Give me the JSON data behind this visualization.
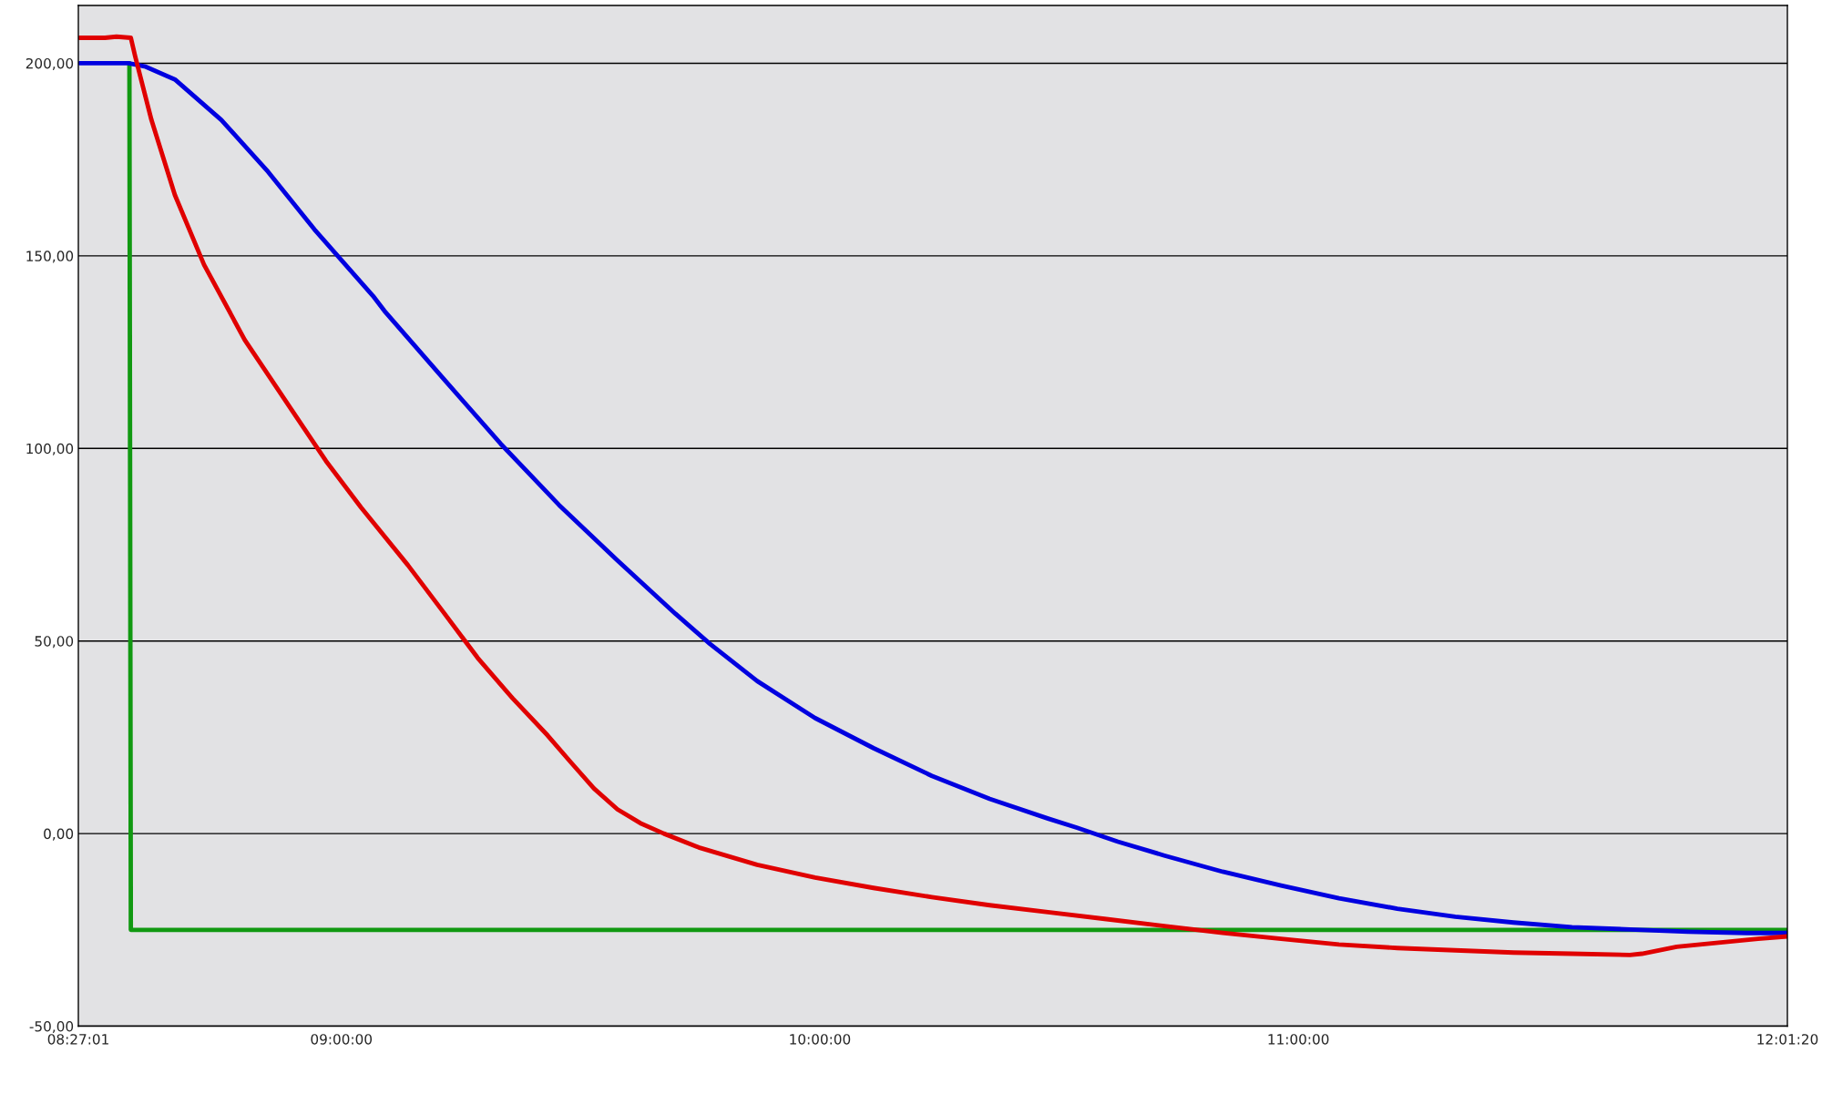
{
  "chart_data": {
    "type": "line",
    "xlim": [
      8.45028,
      12.02222
    ],
    "ylim": [
      -50,
      215
    ],
    "xticks": [
      {
        "value": 8.45028,
        "label": "08:27:01"
      },
      {
        "value": 9,
        "label": "09:00:00"
      },
      {
        "value": 10,
        "label": "10:00:00"
      },
      {
        "value": 11,
        "label": "11:00:00"
      },
      {
        "value": 12.02222,
        "label": "12:01:20"
      }
    ],
    "yticks": [
      {
        "value": -50,
        "label": "-50,00"
      },
      {
        "value": 0,
        "label": "0,00"
      },
      {
        "value": 50,
        "label": "50,00"
      },
      {
        "value": 100,
        "label": "100,00"
      },
      {
        "value": 150,
        "label": "150,00"
      },
      {
        "value": 200,
        "label": "200,00"
      }
    ],
    "grid": "y",
    "line_style": "solid",
    "marker": "none",
    "series": [
      {
        "color": "#119911",
        "x": [
          8.557,
          8.56,
          12.022
        ],
        "values": [
          200,
          -25,
          -25
        ]
      },
      {
        "color": "#0000e0",
        "x": [
          8.453,
          8.555,
          8.591,
          8.652,
          8.749,
          8.847,
          8.944,
          9.066,
          9.09,
          9.212,
          9.333,
          9.455,
          9.577,
          9.698,
          9.771,
          9.869,
          9.99,
          10.112,
          10.234,
          10.355,
          10.477,
          10.538,
          10.623,
          10.72,
          10.842,
          10.964,
          11.085,
          11.207,
          11.328,
          11.45,
          11.572,
          11.693,
          11.815,
          11.937,
          12.022
        ],
        "values": [
          200,
          200,
          199.1,
          195.8,
          185.3,
          171.8,
          156.8,
          139.6,
          135.7,
          118.3,
          101.2,
          85.3,
          70.9,
          57.1,
          49.2,
          39.6,
          30,
          22.2,
          15,
          9,
          3.9,
          1.5,
          -2.1,
          -5.7,
          -9.9,
          -13.5,
          -16.8,
          -19.5,
          -21.6,
          -23.1,
          -24.3,
          -24.9,
          -25.5,
          -25.8,
          -25.8
        ]
      },
      {
        "color": "#e00000",
        "x": [
          8.453,
          8.506,
          8.53,
          8.56,
          8.569,
          8.603,
          8.652,
          8.713,
          8.798,
          8.895,
          8.968,
          9.041,
          9.139,
          9.212,
          9.285,
          9.358,
          9.431,
          9.479,
          9.528,
          9.577,
          9.625,
          9.674,
          9.747,
          9.869,
          9.99,
          10.112,
          10.234,
          10.355,
          10.477,
          10.599,
          10.72,
          10.842,
          10.964,
          11.085,
          11.207,
          11.328,
          11.45,
          11.572,
          11.693,
          11.718,
          11.791,
          11.888,
          11.961,
          12.022
        ],
        "values": [
          206.6,
          206.6,
          206.9,
          206.6,
          201.8,
          185.3,
          165.8,
          147.7,
          128.2,
          110.2,
          96.7,
          84.7,
          69.7,
          57.7,
          45.6,
          35.1,
          25.5,
          18.6,
          11.7,
          6.3,
          2.7,
          0,
          -3.6,
          -8.1,
          -11.4,
          -14.1,
          -16.5,
          -18.6,
          -20.4,
          -22.2,
          -24,
          -25.8,
          -27.3,
          -28.8,
          -29.7,
          -30.3,
          -30.9,
          -31.2,
          -31.5,
          -31.2,
          -29.4,
          -28.2,
          -27.3,
          -26.7
        ]
      }
    ]
  }
}
